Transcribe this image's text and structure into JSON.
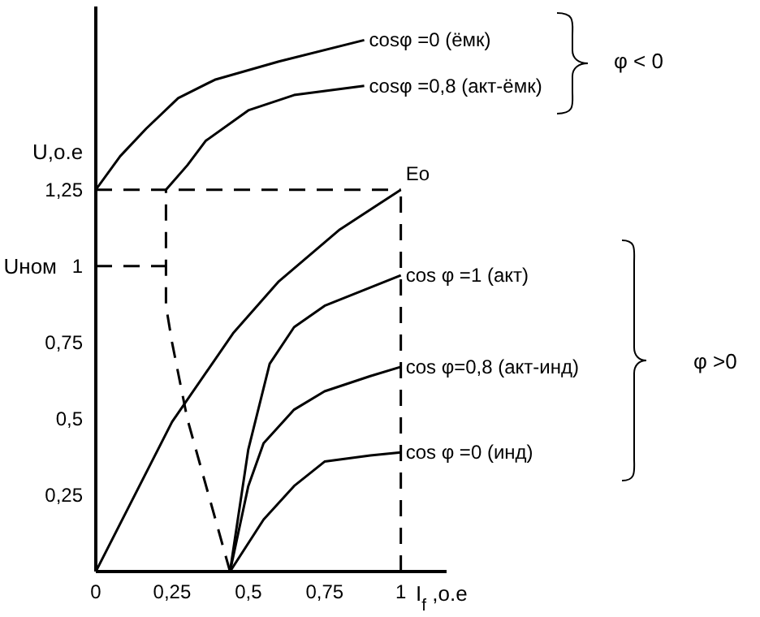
{
  "chart_data": {
    "type": "line",
    "xlabel": "I$_{f}$,o.e",
    "ylabel": "U,o.e",
    "xlim": [
      0,
      1.15
    ],
    "ylim": [
      0,
      1.85
    ],
    "xticks": [
      0,
      {
        "value": 0.25,
        "label": "0,25"
      },
      {
        "value": 0.5,
        "label": "0,5"
      },
      {
        "value": 0.75,
        "label": "0,75"
      },
      1
    ],
    "yticks": [
      {
        "value": 0.25,
        "label": "0,25"
      },
      {
        "value": 0.5,
        "label": "0,5"
      },
      {
        "value": 0.75,
        "label": "0,75"
      },
      1,
      {
        "value": 1.25,
        "label": "1,25"
      }
    ],
    "grid": false,
    "marker": "none",
    "series": [
      {
        "name": "cosφ =0  (ёмк)",
        "color": "#000000",
        "x": [
          0,
          0.08,
          0.165,
          0.27,
          0.39,
          0.6,
          0.88
        ],
        "values": [
          1.25,
          1.36,
          1.45,
          1.55,
          1.61,
          1.67,
          1.74
        ]
      },
      {
        "name": "cosφ =0,8  (акт-ёмк)",
        "color": "#000000",
        "x": [
          0.23,
          0.3,
          0.36,
          0.5,
          0.65,
          0.88
        ],
        "values": [
          1.25,
          1.33,
          1.41,
          1.51,
          1.56,
          1.59
        ]
      },
      {
        "name": "Eo",
        "color": "#000000",
        "x": [
          0,
          0.25,
          0.45,
          0.6,
          0.8,
          1
        ],
        "values": [
          0,
          0.49,
          0.78,
          0.95,
          1.12,
          1.25
        ]
      },
      {
        "name": "cos φ =1 (акт)",
        "color": "#000000",
        "x": [
          0.44,
          0.5,
          0.57,
          0.65,
          0.75,
          0.9,
          1
        ],
        "values": [
          0,
          0.4,
          0.68,
          0.8,
          0.87,
          0.93,
          0.97
        ]
      },
      {
        "name": "cos φ=0,8 (акт-инд)",
        "color": "#000000",
        "x": [
          0.44,
          0.5,
          0.55,
          0.65,
          0.75,
          0.9,
          1
        ],
        "values": [
          0,
          0.28,
          0.42,
          0.53,
          0.59,
          0.64,
          0.67
        ]
      },
      {
        "name": "cos φ =0 (инд)",
        "color": "#000000",
        "x": [
          0.44,
          0.55,
          0.65,
          0.75,
          0.9,
          1
        ],
        "values": [
          0,
          0.17,
          0.28,
          0.36,
          0.38,
          0.39
        ]
      },
      {
        "color": "#000000",
        "line_style": "dashed",
        "x": [
          0.44,
          0.37,
          0.3,
          0.25,
          0.23,
          0.23
        ],
        "values": [
          0,
          0.25,
          0.5,
          0.75,
          0.87,
          1.25
        ]
      },
      {
        "color": "#000000",
        "line_style": "dashed",
        "x": [
          0,
          1
        ],
        "values": [
          1.25,
          1.25
        ]
      },
      {
        "color": "#000000",
        "line_style": "dashed",
        "x": [
          1,
          1
        ],
        "values": [
          0,
          1.25
        ]
      },
      {
        "color": "#000000",
        "line_style": "dashed",
        "x": [
          0,
          0.23
        ],
        "values": [
          1,
          1
        ]
      }
    ],
    "annotations": [
      {
        "text": "Uном",
        "x": 0,
        "y": 1
      },
      "φ < 0",
      "φ >0"
    ]
  }
}
